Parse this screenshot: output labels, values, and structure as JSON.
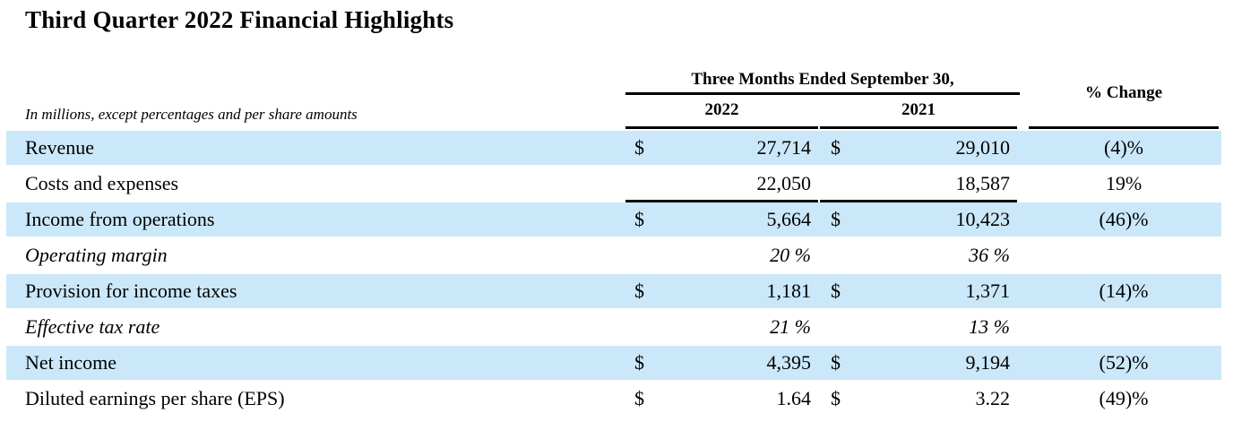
{
  "page": {
    "title": "Third Quarter 2022 Financial Highlights"
  },
  "table": {
    "note": "In millions, except percentages and per share amounts",
    "period_header": "Three Months Ended September 30,",
    "col_2022": "2022",
    "col_2021": "2021",
    "pct_change_header": "% Change",
    "rows": [
      {
        "label": "Revenue",
        "currency_2022": "$",
        "y2022": "27,714",
        "currency_2021": "$",
        "y2021": "29,010",
        "change": "(4)%"
      },
      {
        "label": "Costs and expenses",
        "currency_2022": "",
        "y2022": "22,050",
        "currency_2021": "",
        "y2021": "18,587",
        "change": "19%"
      },
      {
        "label": "Income from operations",
        "currency_2022": "$",
        "y2022": "5,664",
        "currency_2021": "$",
        "y2021": "10,423",
        "change": "(46)%"
      },
      {
        "label": "Operating margin",
        "currency_2022": "",
        "y2022": "20 %",
        "currency_2021": "",
        "y2021": "36 %",
        "change": ""
      },
      {
        "label": "Provision for income taxes",
        "currency_2022": "$",
        "y2022": "1,181",
        "currency_2021": "$",
        "y2021": "1,371",
        "change": "(14)%"
      },
      {
        "label": "Effective tax rate",
        "currency_2022": "",
        "y2022": "21 %",
        "currency_2021": "",
        "y2021": "13 %",
        "change": ""
      },
      {
        "label": "Net income",
        "currency_2022": "$",
        "y2022": "4,395",
        "currency_2021": "$",
        "y2021": "9,194",
        "change": "(52)%"
      },
      {
        "label": "Diluted earnings per share (EPS)",
        "currency_2022": "$",
        "y2022": "1.64",
        "currency_2021": "$",
        "y2021": "3.22",
        "change": "(49)%"
      }
    ],
    "colors": {
      "row_highlight": "#cbe8fa",
      "rule": "#000000",
      "text": "#000000"
    }
  }
}
